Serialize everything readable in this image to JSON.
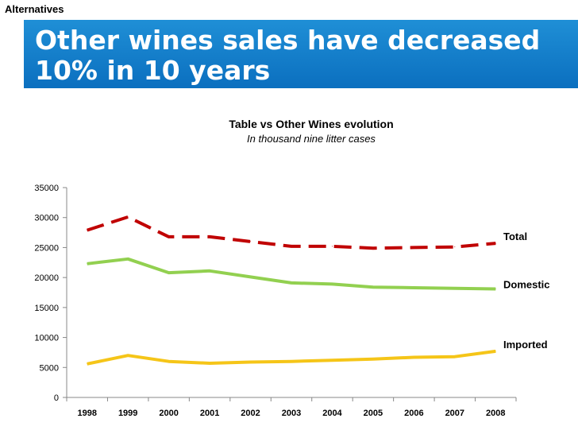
{
  "header": {
    "section_label": "Alternatives",
    "title": "Other wines sales have decreased 10% in 10 years"
  },
  "colors": {
    "banner": "#1380cc",
    "total": "#c00000",
    "domestic": "#92d050",
    "imported": "#f5c518"
  },
  "chart_data": {
    "type": "line",
    "title": "Table vs Other Wines evolution",
    "subtitle": "In thousand nine litter cases",
    "xlabel": "",
    "ylabel": "",
    "x": [
      "1998",
      "1999",
      "2000",
      "2001",
      "2002",
      "2003",
      "2004",
      "2005",
      "2006",
      "2007",
      "2008"
    ],
    "ylim": [
      0,
      35000
    ],
    "yticks": [
      0,
      5000,
      10000,
      15000,
      20000,
      25000,
      30000,
      35000
    ],
    "grid": false,
    "legend": "direct labels at line ends",
    "series": [
      {
        "name": "Total",
        "style": "dashed",
        "color": "#c00000",
        "values": [
          27900,
          30100,
          26800,
          26800,
          26000,
          25200,
          25200,
          24900,
          25000,
          25100,
          25700
        ]
      },
      {
        "name": "Domestic",
        "style": "solid",
        "color": "#92d050",
        "values": [
          22300,
          23100,
          20800,
          21100,
          20100,
          19100,
          18900,
          18400,
          18300,
          18200,
          18100
        ]
      },
      {
        "name": "Imported",
        "style": "solid",
        "color": "#f5c518",
        "values": [
          5600,
          7000,
          6000,
          5700,
          5900,
          6000,
          6200,
          6400,
          6700,
          6800,
          7700
        ]
      }
    ]
  }
}
